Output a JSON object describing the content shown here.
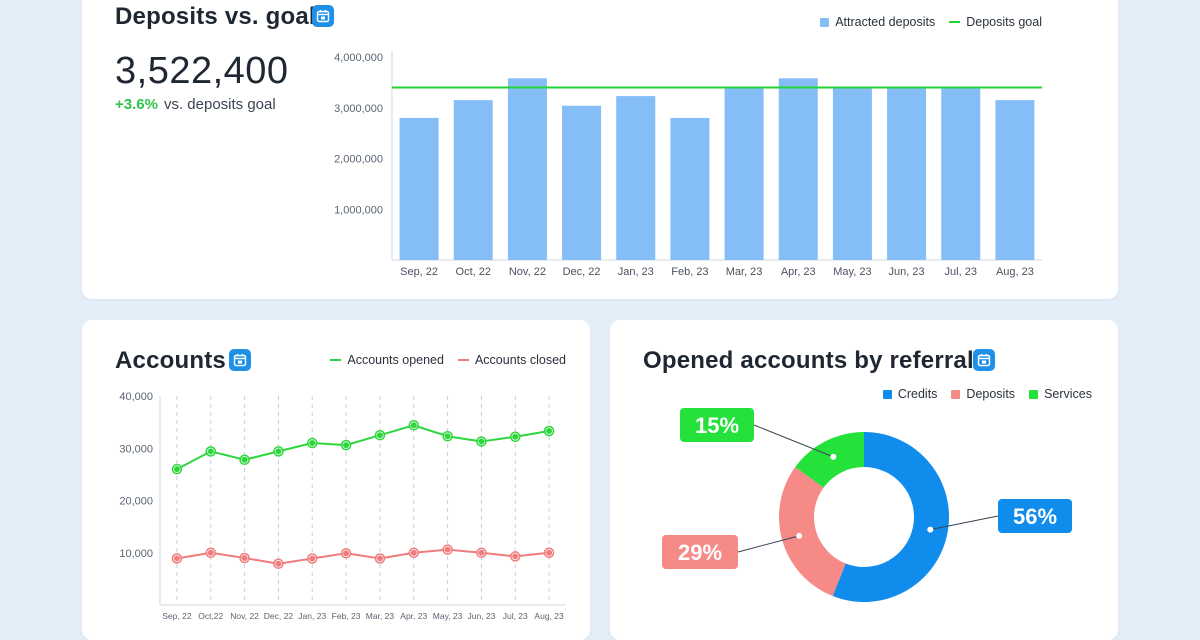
{
  "colors": {
    "bar": "#85bdf7",
    "goal": "#22d335",
    "opened": "#2ed63e",
    "closed": "#ef7d7d",
    "credits": "#0f8cec",
    "deposits": "#f58a86",
    "services": "#24e23a",
    "calendar_icon": "#1e90e8"
  },
  "deposits_card": {
    "title": "Deposits vs. goal",
    "icon": "calendar-icon",
    "big_value": "3,522,400",
    "delta_pct": "+3.6%",
    "delta_text": "vs. deposits goal",
    "legend": {
      "bars": "Attracted deposits",
      "goal": "Deposits goal"
    }
  },
  "accounts_card": {
    "title": "Accounts",
    "icon": "calendar-icon",
    "legend": {
      "opened": "Accounts opened",
      "closed": "Accounts closed"
    }
  },
  "referral_card": {
    "title": "Opened accounts by referral",
    "icon": "calendar-icon",
    "legend": {
      "credits": "Credits",
      "deposits": "Deposits",
      "services": "Services"
    }
  },
  "chart_data": [
    {
      "type": "bar",
      "title": "Deposits vs. goal",
      "categories": [
        "Sep, 22",
        "Oct, 22",
        "Nov, 22",
        "Dec, 22",
        "Jan, 23",
        "Feb, 23",
        "Mar, 23",
        "Apr, 23",
        "May, 23",
        "Jun, 23",
        "Jul, 23",
        "Aug, 23"
      ],
      "series": [
        {
          "name": "Attracted deposits",
          "values": [
            2800000,
            3150000,
            3580000,
            3040000,
            3230000,
            2800000,
            3400000,
            3580000,
            3400000,
            3400000,
            3400000,
            3150000
          ]
        }
      ],
      "goal": {
        "name": "Deposits goal",
        "value": 3400000
      },
      "yticks": [
        "1,000,000",
        "2,000,000",
        "3,000,000",
        "4,000,000"
      ],
      "ytick_values": [
        1000000,
        2000000,
        3000000,
        4000000
      ],
      "ylim": [
        0,
        4000000
      ],
      "grid": false,
      "legend": "top-right"
    },
    {
      "type": "line",
      "title": "Accounts",
      "categories": [
        "Sep, 22",
        "Oct,22",
        "Nov, 22",
        "Dec, 22",
        "Jan, 23",
        "Feb, 23",
        "Mar, 23",
        "Apr, 23",
        "May, 23",
        "Jun, 23",
        "Jul, 23",
        "Aug, 23"
      ],
      "series": [
        {
          "name": "Accounts opened",
          "values": [
            26000,
            29400,
            27800,
            29400,
            31000,
            30600,
            32500,
            34400,
            32300,
            31300,
            32200,
            33300
          ]
        },
        {
          "name": "Accounts closed",
          "values": [
            8900,
            10000,
            9000,
            7900,
            8900,
            9900,
            8900,
            10000,
            10600,
            10000,
            9300,
            10000
          ]
        }
      ],
      "yticks": [
        "10,000",
        "20,000",
        "30,000",
        "40,000"
      ],
      "ytick_values": [
        10000,
        20000,
        30000,
        40000
      ],
      "ylim": [
        0,
        40000
      ],
      "grid": "vertical-dashed",
      "legend": "top-right"
    },
    {
      "type": "pie",
      "title": "Opened accounts by referral",
      "slices": [
        {
          "name": "Credits",
          "value": 56,
          "label": "56%"
        },
        {
          "name": "Deposits",
          "value": 29,
          "label": "29%"
        },
        {
          "name": "Services",
          "value": 15,
          "label": "15%"
        }
      ],
      "legend": "top-right"
    }
  ]
}
